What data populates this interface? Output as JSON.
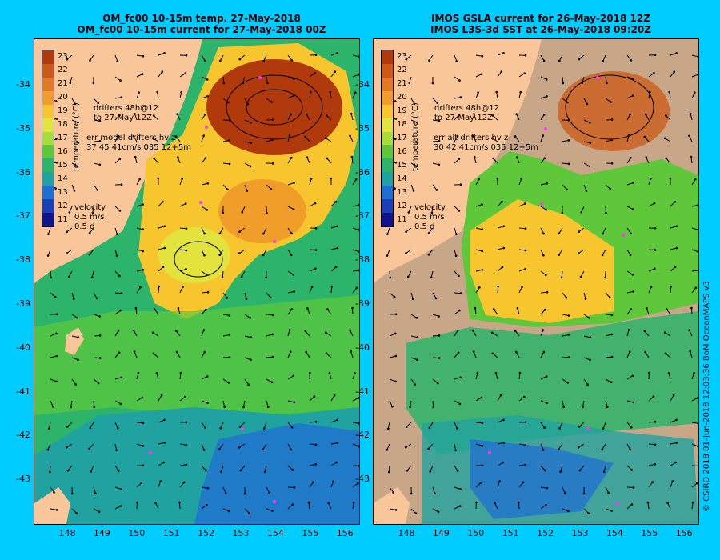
{
  "panels": [
    {
      "title_line1": "OM_fc00 10-15m temp. 27-May-2018",
      "title_line2": "OM_fc00 10-15m current for 27-May-2018 00Z",
      "legend_drifters_line1": "drifters 48h@12",
      "legend_drifters_line2": "to 27-May 12Z",
      "legend_err_line1": "err model drifters hv z",
      "legend_err_line2": "37 45 41cm/s 035 12+5m",
      "velocity_label": "velocity",
      "velocity_scale": "0.5 m/s",
      "velocity_time": "0.5 d"
    },
    {
      "title_line1": "IMOS GSLA current for 26-May-2018 12Z",
      "title_line2": "IMOS L3S-3d SST at 26-May-2018 09:20Z",
      "legend_drifters_line1": "drifters 48h@12",
      "legend_drifters_line2": "to 27-May 12Z",
      "legend_err_line1": "err alt drifters hv z",
      "legend_err_line2": "30 42 41cm/s 035 12+5m",
      "velocity_label": "velocity",
      "velocity_scale": "0.5 m/s",
      "velocity_time": "0.5 d"
    }
  ],
  "colorbar": {
    "title": "temperature (°C)",
    "labels": [
      "23",
      "22",
      "21",
      "20",
      "19",
      "18",
      "17",
      "16",
      "15",
      "14",
      "13",
      "12",
      "11"
    ],
    "colors": [
      "#b03a0c",
      "#cc5a16",
      "#e27a20",
      "#f09d2a",
      "#f7c62f",
      "#e2e33c",
      "#a8dc3a",
      "#5ec83a",
      "#2cb46a",
      "#20a3a0",
      "#1f6fd2",
      "#1a3fb8",
      "#10148a"
    ]
  },
  "y_axis_labels": [
    "-34",
    "-35",
    "-36",
    "-37",
    "-38",
    "-39",
    "-40",
    "-41",
    "-42",
    "-43"
  ],
  "x_axis_labels": [
    "148",
    "149",
    "150",
    "151",
    "152",
    "153",
    "154",
    "155",
    "156"
  ],
  "credit": "© CSIRO 2018  01-Jun-2018 12:03:36 BoM OceanMAPS v3",
  "map_colors": {
    "land": "#f8c699",
    "no_data": "#c8a688",
    "drifter": "#ff33ff"
  }
}
